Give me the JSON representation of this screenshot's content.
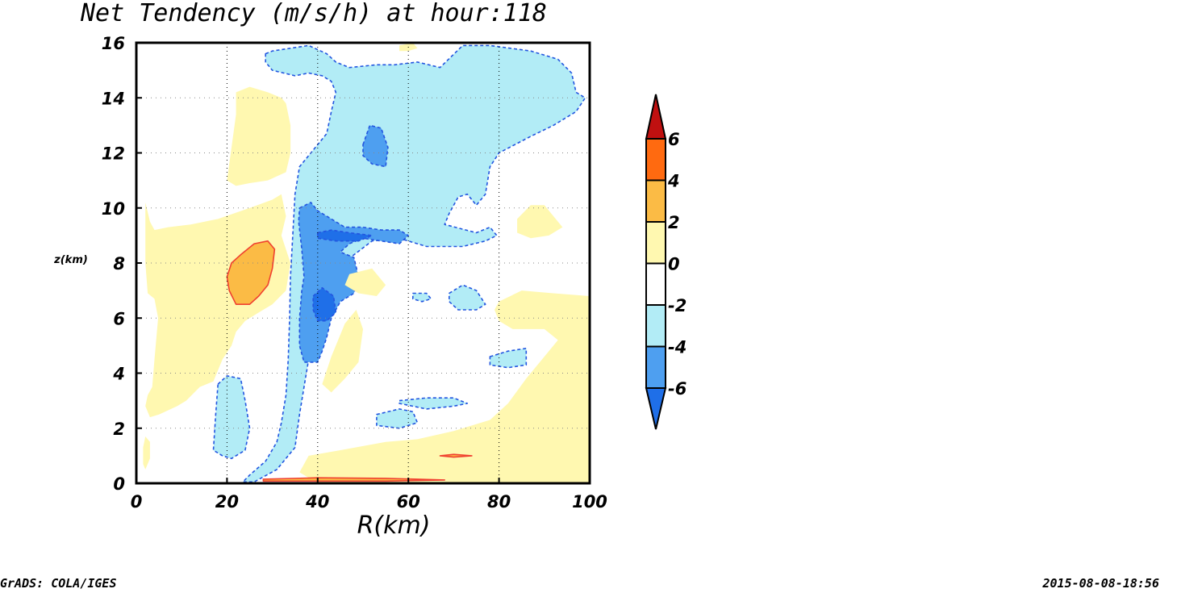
{
  "chart_data": {
    "type": "contour",
    "title": "Net Tendency (m/s/h) at hour:118",
    "xlabel": "R(km)",
    "ylabel": "z(km)",
    "xlim": [
      0,
      100
    ],
    "ylim": [
      0,
      16
    ],
    "x_ticks": [
      "0",
      "20",
      "40",
      "60",
      "80",
      "100"
    ],
    "y_ticks": [
      "0",
      "2",
      "4",
      "6",
      "8",
      "10",
      "12",
      "14",
      "16"
    ],
    "grid": true,
    "colorbar": {
      "placement": "right",
      "levels": [
        "-6",
        "-4",
        "-2",
        "0",
        "2",
        "4",
        "6"
      ],
      "colors": [
        "#1f6fe8",
        "#4e9ff0",
        "#b2ecf6",
        "#ffffff",
        "#fff8b0",
        "#fbbb45",
        "#ff6a10",
        "#c01010"
      ]
    },
    "regions": [
      {
        "level": -2,
        "color": "#b2ecf6",
        "points": [
          [
            28.5,
            15.6
          ],
          [
            30,
            15.7
          ],
          [
            38,
            15.9
          ],
          [
            42,
            15.6
          ],
          [
            44,
            15.3
          ],
          [
            47,
            15.1
          ],
          [
            53,
            15.2
          ],
          [
            57,
            15.2
          ],
          [
            62,
            15.3
          ],
          [
            67,
            15.1
          ],
          [
            72,
            15.9
          ],
          [
            78,
            15.9
          ],
          [
            87,
            15.7
          ],
          [
            93,
            15.4
          ],
          [
            96,
            14.9
          ],
          [
            97,
            14.2
          ],
          [
            99,
            14.0
          ],
          [
            97,
            13.5
          ],
          [
            92,
            13.0
          ],
          [
            87,
            12.6
          ],
          [
            80,
            12.0
          ],
          [
            78,
            11.5
          ],
          [
            77,
            10.5
          ],
          [
            75,
            10.1
          ],
          [
            73,
            10.5
          ],
          [
            71,
            10.4
          ],
          [
            69,
            9.8
          ],
          [
            68,
            9.4
          ],
          [
            75,
            9.1
          ],
          [
            78,
            9.3
          ],
          [
            79.5,
            9.0
          ],
          [
            77,
            8.8
          ],
          [
            72,
            8.6
          ],
          [
            64,
            8.6
          ],
          [
            58,
            8.9
          ],
          [
            52,
            8.8
          ],
          [
            48,
            8.3
          ],
          [
            44,
            7.8
          ],
          [
            41,
            6.8
          ],
          [
            39,
            5.6
          ],
          [
            38,
            4.5
          ],
          [
            37,
            3.5
          ],
          [
            36,
            2.5
          ],
          [
            35,
            1.3
          ],
          [
            31,
            0.5
          ],
          [
            26,
            0.05
          ],
          [
            23.5,
            0.05
          ],
          [
            25,
            0.3
          ],
          [
            28.5,
            0.8
          ],
          [
            31,
            1.5
          ],
          [
            32,
            2.2
          ],
          [
            33,
            3.2
          ],
          [
            33.5,
            4.5
          ],
          [
            33.8,
            6.0
          ],
          [
            34,
            7.5
          ],
          [
            34.5,
            9.0
          ],
          [
            35,
            10.5
          ],
          [
            36,
            11.5
          ],
          [
            38,
            11.9
          ],
          [
            40,
            12.3
          ],
          [
            42,
            12.7
          ],
          [
            43,
            13.5
          ],
          [
            44,
            14.2
          ],
          [
            43,
            14.6
          ],
          [
            41,
            14.8
          ],
          [
            38,
            14.9
          ],
          [
            35,
            14.8
          ],
          [
            30,
            15.0
          ],
          [
            28.5,
            15.3
          ]
        ]
      },
      {
        "level": -2,
        "color": "#b2ecf6",
        "points": [
          [
            18,
            3.6
          ],
          [
            20,
            3.9
          ],
          [
            23,
            3.8
          ],
          [
            24,
            3.0
          ],
          [
            25,
            2.0
          ],
          [
            24,
            1.2
          ],
          [
            21,
            0.9
          ],
          [
            19,
            1.0
          ],
          [
            17,
            1.2
          ],
          [
            17.5,
            2.5
          ]
        ]
      },
      {
        "level": -2,
        "color": "#b2ecf6",
        "points": [
          [
            69,
            6.9
          ],
          [
            72,
            7.2
          ],
          [
            75,
            7.0
          ],
          [
            77,
            6.5
          ],
          [
            75,
            6.3
          ],
          [
            71,
            6.3
          ],
          [
            69,
            6.6
          ]
        ]
      },
      {
        "level": -2,
        "color": "#b2ecf6",
        "points": [
          [
            61,
            6.9
          ],
          [
            64,
            6.9
          ],
          [
            65,
            6.7
          ],
          [
            63,
            6.6
          ],
          [
            61,
            6.7
          ]
        ]
      },
      {
        "level": -2,
        "color": "#b2ecf6",
        "points": [
          [
            78,
            4.6
          ],
          [
            82,
            4.8
          ],
          [
            86,
            4.9
          ],
          [
            86,
            4.3
          ],
          [
            82,
            4.2
          ],
          [
            78,
            4.3
          ]
        ]
      },
      {
        "level": -2,
        "color": "#b2ecf6",
        "points": [
          [
            58,
            3.0
          ],
          [
            64,
            3.1
          ],
          [
            70,
            3.1
          ],
          [
            73,
            2.9
          ],
          [
            70,
            2.8
          ],
          [
            64,
            2.7
          ],
          [
            58,
            2.9
          ]
        ]
      },
      {
        "level": -2,
        "color": "#b2ecf6",
        "points": [
          [
            53,
            2.5
          ],
          [
            58,
            2.7
          ],
          [
            61,
            2.6
          ],
          [
            62,
            2.2
          ],
          [
            58,
            2.0
          ],
          [
            53,
            2.1
          ]
        ]
      },
      {
        "level": -4,
        "color": "#4e9ff0",
        "points": [
          [
            36,
            10.0
          ],
          [
            38.5,
            10.2
          ],
          [
            40,
            9.9
          ],
          [
            43,
            9.6
          ],
          [
            46,
            9.3
          ],
          [
            50,
            9.3
          ],
          [
            54,
            9.2
          ],
          [
            58,
            9.2
          ],
          [
            60,
            9.0
          ],
          [
            58,
            8.7
          ],
          [
            54,
            8.8
          ],
          [
            50,
            8.9
          ],
          [
            47,
            8.7
          ],
          [
            45,
            8.4
          ],
          [
            48,
            8.2
          ],
          [
            49,
            7.5
          ],
          [
            48,
            6.9
          ],
          [
            45,
            6.6
          ],
          [
            43,
            6.0
          ],
          [
            42,
            5.3
          ],
          [
            41,
            4.8
          ],
          [
            40,
            4.4
          ],
          [
            37,
            4.4
          ],
          [
            36,
            5.0
          ],
          [
            36,
            6.0
          ],
          [
            36.5,
            7.0
          ],
          [
            37,
            7.5
          ],
          [
            36.5,
            8.5
          ],
          [
            35.8,
            9.5
          ]
        ]
      },
      {
        "level": -4,
        "color": "#4e9ff0",
        "points": [
          [
            50,
            12.3
          ],
          [
            51.5,
            13.0
          ],
          [
            54,
            12.9
          ],
          [
            55.5,
            12.2
          ],
          [
            55,
            11.5
          ],
          [
            52,
            11.6
          ],
          [
            50,
            11.9
          ]
        ]
      },
      {
        "level": -6,
        "color": "#1f6fe8",
        "points": [
          [
            40,
            9.1
          ],
          [
            43,
            9.2
          ],
          [
            47,
            9.1
          ],
          [
            52,
            9.0
          ],
          [
            49,
            8.8
          ],
          [
            44,
            8.8
          ],
          [
            40,
            8.9
          ]
        ]
      },
      {
        "level": -6,
        "color": "#1f6fe8",
        "points": [
          [
            39,
            6.8
          ],
          [
            41,
            7.1
          ],
          [
            43.5,
            6.8
          ],
          [
            44,
            6.2
          ],
          [
            42,
            5.9
          ],
          [
            40,
            5.9
          ],
          [
            39,
            6.3
          ]
        ]
      },
      {
        "level": 0,
        "color": "#fff8b0",
        "points": [
          [
            20,
            11.0
          ],
          [
            22,
            13.4
          ],
          [
            22,
            14.2
          ],
          [
            25,
            14.4
          ],
          [
            29,
            14.2
          ],
          [
            32,
            14.0
          ],
          [
            33,
            13.8
          ],
          [
            34,
            13.0
          ],
          [
            34,
            12.0
          ],
          [
            33,
            11.3
          ],
          [
            29,
            11.0
          ],
          [
            25,
            10.9
          ],
          [
            22,
            10.8
          ]
        ]
      },
      {
        "level": 0,
        "color": "#fff8b0",
        "points": [
          [
            2,
            10.2
          ],
          [
            3,
            9.5
          ],
          [
            4,
            9.2
          ],
          [
            7,
            9.3
          ],
          [
            12,
            9.4
          ],
          [
            18,
            9.6
          ],
          [
            25,
            10.0
          ],
          [
            30,
            10.3
          ],
          [
            32,
            10.5
          ],
          [
            33,
            9.7
          ],
          [
            32,
            9.0
          ],
          [
            34,
            8.0
          ],
          [
            33,
            7.0
          ],
          [
            30,
            6.5
          ],
          [
            27,
            6.2
          ],
          [
            24,
            5.9
          ],
          [
            22,
            5.5
          ],
          [
            21,
            5.0
          ],
          [
            19,
            4.5
          ],
          [
            17,
            3.7
          ],
          [
            14,
            3.5
          ],
          [
            11,
            3.0
          ],
          [
            9,
            2.8
          ],
          [
            5,
            2.5
          ],
          [
            3,
            2.4
          ],
          [
            2,
            2.8
          ],
          [
            2.5,
            3.2
          ],
          [
            3.5,
            3.5
          ],
          [
            4,
            4.5
          ],
          [
            4.8,
            6.0
          ],
          [
            4,
            6.7
          ],
          [
            2.5,
            6.9
          ],
          [
            2,
            8.0
          ]
        ]
      },
      {
        "level": 0,
        "color": "#fff8b0",
        "points": [
          [
            2,
            1.7
          ],
          [
            3,
            1.5
          ],
          [
            3,
            0.9
          ],
          [
            2,
            0.5
          ],
          [
            1.5,
            0.7
          ],
          [
            1.5,
            1.3
          ]
        ]
      },
      {
        "level": 0,
        "color": "#fff8b0",
        "points": [
          [
            58,
            15.9
          ],
          [
            61,
            16.0
          ],
          [
            62,
            15.8
          ],
          [
            60,
            15.7
          ],
          [
            58,
            15.7
          ]
        ]
      },
      {
        "level": 0,
        "color": "#fff8b0",
        "points": [
          [
            84,
            9.6
          ],
          [
            87,
            10.1
          ],
          [
            90,
            10.1
          ],
          [
            94,
            9.3
          ],
          [
            91,
            9.0
          ],
          [
            87,
            8.9
          ],
          [
            84,
            9.1
          ]
        ]
      },
      {
        "level": 0,
        "color": "#fff8b0",
        "points": [
          [
            47,
            7.6
          ],
          [
            52,
            7.8
          ],
          [
            55,
            7.2
          ],
          [
            53,
            6.8
          ],
          [
            49,
            6.9
          ],
          [
            46,
            7.2
          ]
        ]
      },
      {
        "level": 0,
        "color": "#fff8b0",
        "points": [
          [
            41,
            3.6
          ],
          [
            43,
            4.6
          ],
          [
            46,
            5.8
          ],
          [
            48.5,
            6.3
          ],
          [
            50,
            5.6
          ],
          [
            49,
            4.4
          ],
          [
            46,
            3.8
          ],
          [
            43,
            3.3
          ]
        ]
      },
      {
        "level": 0,
        "color": "#fff8b0",
        "points": [
          [
            80,
            6.6
          ],
          [
            85,
            7.0
          ],
          [
            92,
            6.9
          ],
          [
            100,
            6.8
          ],
          [
            100,
            0
          ],
          [
            40,
            0
          ],
          [
            36,
            0.4
          ],
          [
            38,
            1.0
          ],
          [
            45,
            1.2
          ],
          [
            55,
            1.5
          ],
          [
            62,
            1.6
          ],
          [
            70,
            1.9
          ],
          [
            78,
            2.3
          ],
          [
            82,
            2.9
          ],
          [
            86,
            3.8
          ],
          [
            90,
            4.6
          ],
          [
            93,
            5.2
          ],
          [
            90,
            5.6
          ],
          [
            83,
            5.6
          ],
          [
            80,
            5.9
          ],
          [
            79,
            6.3
          ]
        ]
      },
      {
        "level": 2,
        "color": "#fbbb45",
        "points": [
          [
            20,
            7.5
          ],
          [
            21,
            8.0
          ],
          [
            23,
            8.3
          ],
          [
            26,
            8.7
          ],
          [
            29,
            8.8
          ],
          [
            30.5,
            8.5
          ],
          [
            30,
            7.8
          ],
          [
            29,
            7.2
          ],
          [
            27,
            6.8
          ],
          [
            25,
            6.5
          ],
          [
            22,
            6.5
          ],
          [
            20.5,
            7.0
          ]
        ]
      },
      {
        "level": 2,
        "color": "#fbbb45",
        "points": [
          [
            67,
            1.0
          ],
          [
            70,
            1.05
          ],
          [
            74,
            1.0
          ],
          [
            70,
            0.95
          ]
        ]
      },
      {
        "level": 2,
        "color": "#fbbb45",
        "points": [
          [
            28,
            0.15
          ],
          [
            40,
            0.2
          ],
          [
            55,
            0.18
          ],
          [
            68,
            0.12
          ],
          [
            55,
            0.08
          ],
          [
            40,
            0.08
          ],
          [
            28,
            0.08
          ]
        ]
      }
    ]
  },
  "footer": {
    "left": "GrADS: COLA/IGES",
    "right": "2015-08-08-18:56"
  }
}
